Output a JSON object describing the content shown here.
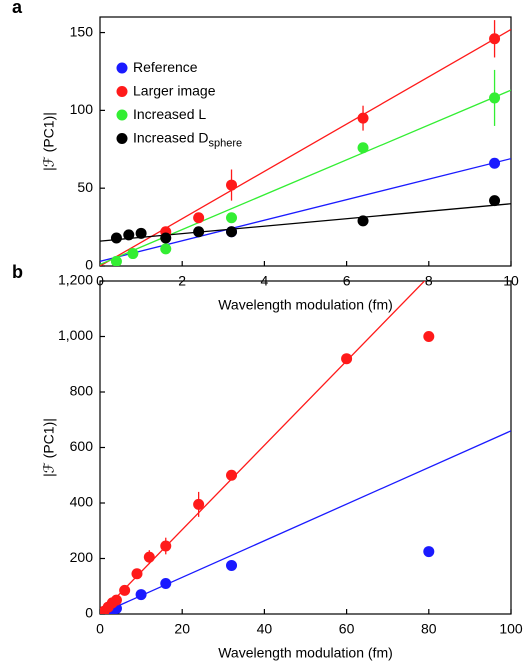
{
  "chart_data": [
    {
      "type": "scatter",
      "panel": "a",
      "y_label": "|ℱ (PC1)|",
      "x_label": "Wavelength modulation (fm)",
      "xlim": [
        0,
        10
      ],
      "ylim": [
        0,
        160
      ],
      "xticks": [
        0,
        2,
        4,
        6,
        8,
        10
      ],
      "yticks": [
        0,
        50,
        100,
        150
      ],
      "legend": "upper left",
      "series": [
        {
          "name": "Reference",
          "color": "#1a1aff",
          "x": [
            3.2,
            9.6
          ],
          "values": [
            22,
            66
          ],
          "errors": [
            null,
            null
          ],
          "fit": {
            "x": [
              0,
              10
            ],
            "y": [
              3,
              69
            ]
          }
        },
        {
          "name": "Larger image",
          "color": "#ff1a1a",
          "x": [
            1.6,
            2.4,
            3.2,
            6.4,
            9.6
          ],
          "values": [
            22,
            31,
            52,
            95,
            146
          ],
          "errors": [
            null,
            null,
            10,
            8,
            12
          ],
          "fit": {
            "x": [
              0,
              10
            ],
            "y": [
              0,
              152
            ]
          }
        },
        {
          "name": "Increased L",
          "color": "#33ee33",
          "x": [
            0.4,
            0.8,
            1.6,
            3.2,
            6.4,
            9.6
          ],
          "values": [
            3,
            8,
            11,
            31,
            76,
            108
          ],
          "errors": [
            null,
            null,
            null,
            null,
            null,
            18
          ],
          "fit": {
            "x": [
              0,
              10
            ],
            "y": [
              1,
              113
            ]
          }
        },
        {
          "name": "Increased D",
          "name_sub": "sphere",
          "color": "#000000",
          "x": [
            0.4,
            0.7,
            1.0,
            1.6,
            2.4,
            3.2,
            6.4,
            9.6
          ],
          "values": [
            18,
            20,
            21,
            18,
            22,
            22,
            29,
            42
          ],
          "errors": [
            3,
            3,
            2,
            null,
            null,
            3,
            null,
            null
          ],
          "fit": {
            "x": [
              0,
              10
            ],
            "y": [
              16,
              40
            ]
          }
        }
      ]
    },
    {
      "type": "scatter",
      "panel": "b",
      "y_label": "|ℱ (PC1)|",
      "x_label": "Wavelength modulation (fm)",
      "xlim": [
        0,
        100
      ],
      "ylim": [
        0,
        1200
      ],
      "xticks": [
        0,
        20,
        40,
        60,
        80,
        100
      ],
      "yticks": [
        0,
        200,
        400,
        600,
        800,
        {
          "value": 1000,
          "label": "1,000"
        },
        {
          "value": 1200,
          "label": "1,200"
        }
      ],
      "series": [
        {
          "color": "#1a1aff",
          "x": [
            1,
            2,
            3,
            4,
            10,
            16,
            32,
            80
          ],
          "values": [
            5,
            10,
            15,
            20,
            70,
            110,
            175,
            225
          ],
          "errors": [
            null,
            null,
            null,
            null,
            null,
            null,
            null,
            null
          ],
          "fit": {
            "x": [
              0,
              100
            ],
            "y": [
              0,
              660
            ]
          }
        },
        {
          "color": "#ff1a1a",
          "x": [
            1,
            2,
            3,
            4,
            6,
            9,
            12,
            16,
            24,
            32,
            60,
            80
          ],
          "values": [
            10,
            25,
            40,
            50,
            85,
            145,
            205,
            245,
            395,
            500,
            920,
            1000
          ],
          "errors": [
            null,
            null,
            null,
            null,
            null,
            null,
            25,
            30,
            45,
            null,
            null,
            null
          ],
          "fit": {
            "x": [
              0,
              80
            ],
            "y": [
              0,
              1216
            ]
          }
        }
      ]
    }
  ]
}
